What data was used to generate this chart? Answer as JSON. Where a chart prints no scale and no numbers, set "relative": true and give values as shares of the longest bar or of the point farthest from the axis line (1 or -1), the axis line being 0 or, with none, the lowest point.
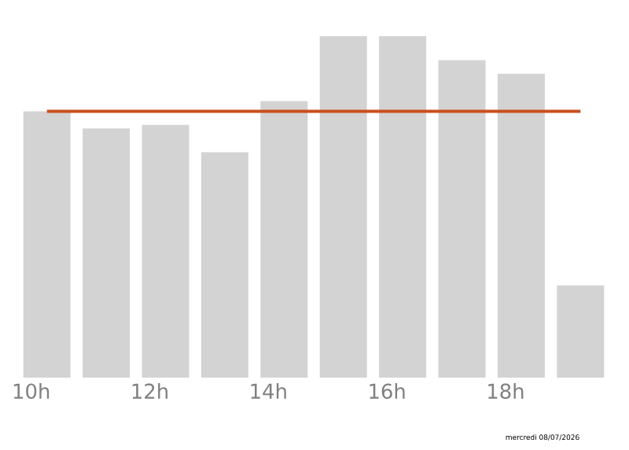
{
  "chart_data": {
    "type": "bar",
    "relative": true,
    "color": "#d3d3d3",
    "categories": [
      "10h",
      null,
      "12h",
      null,
      "14h",
      null,
      "16h",
      null,
      "18h",
      null
    ],
    "values": [
      0.78,
      0.73,
      0.74,
      0.66,
      0.81,
      1,
      1,
      0.93,
      0.89,
      0.27
    ],
    "ref_lines": [
      {
        "axis": "y",
        "value": 0.78,
        "color": "#c8501e"
      }
    ],
    "annotations": [
      "mercredi 08/07/2026"
    ]
  }
}
